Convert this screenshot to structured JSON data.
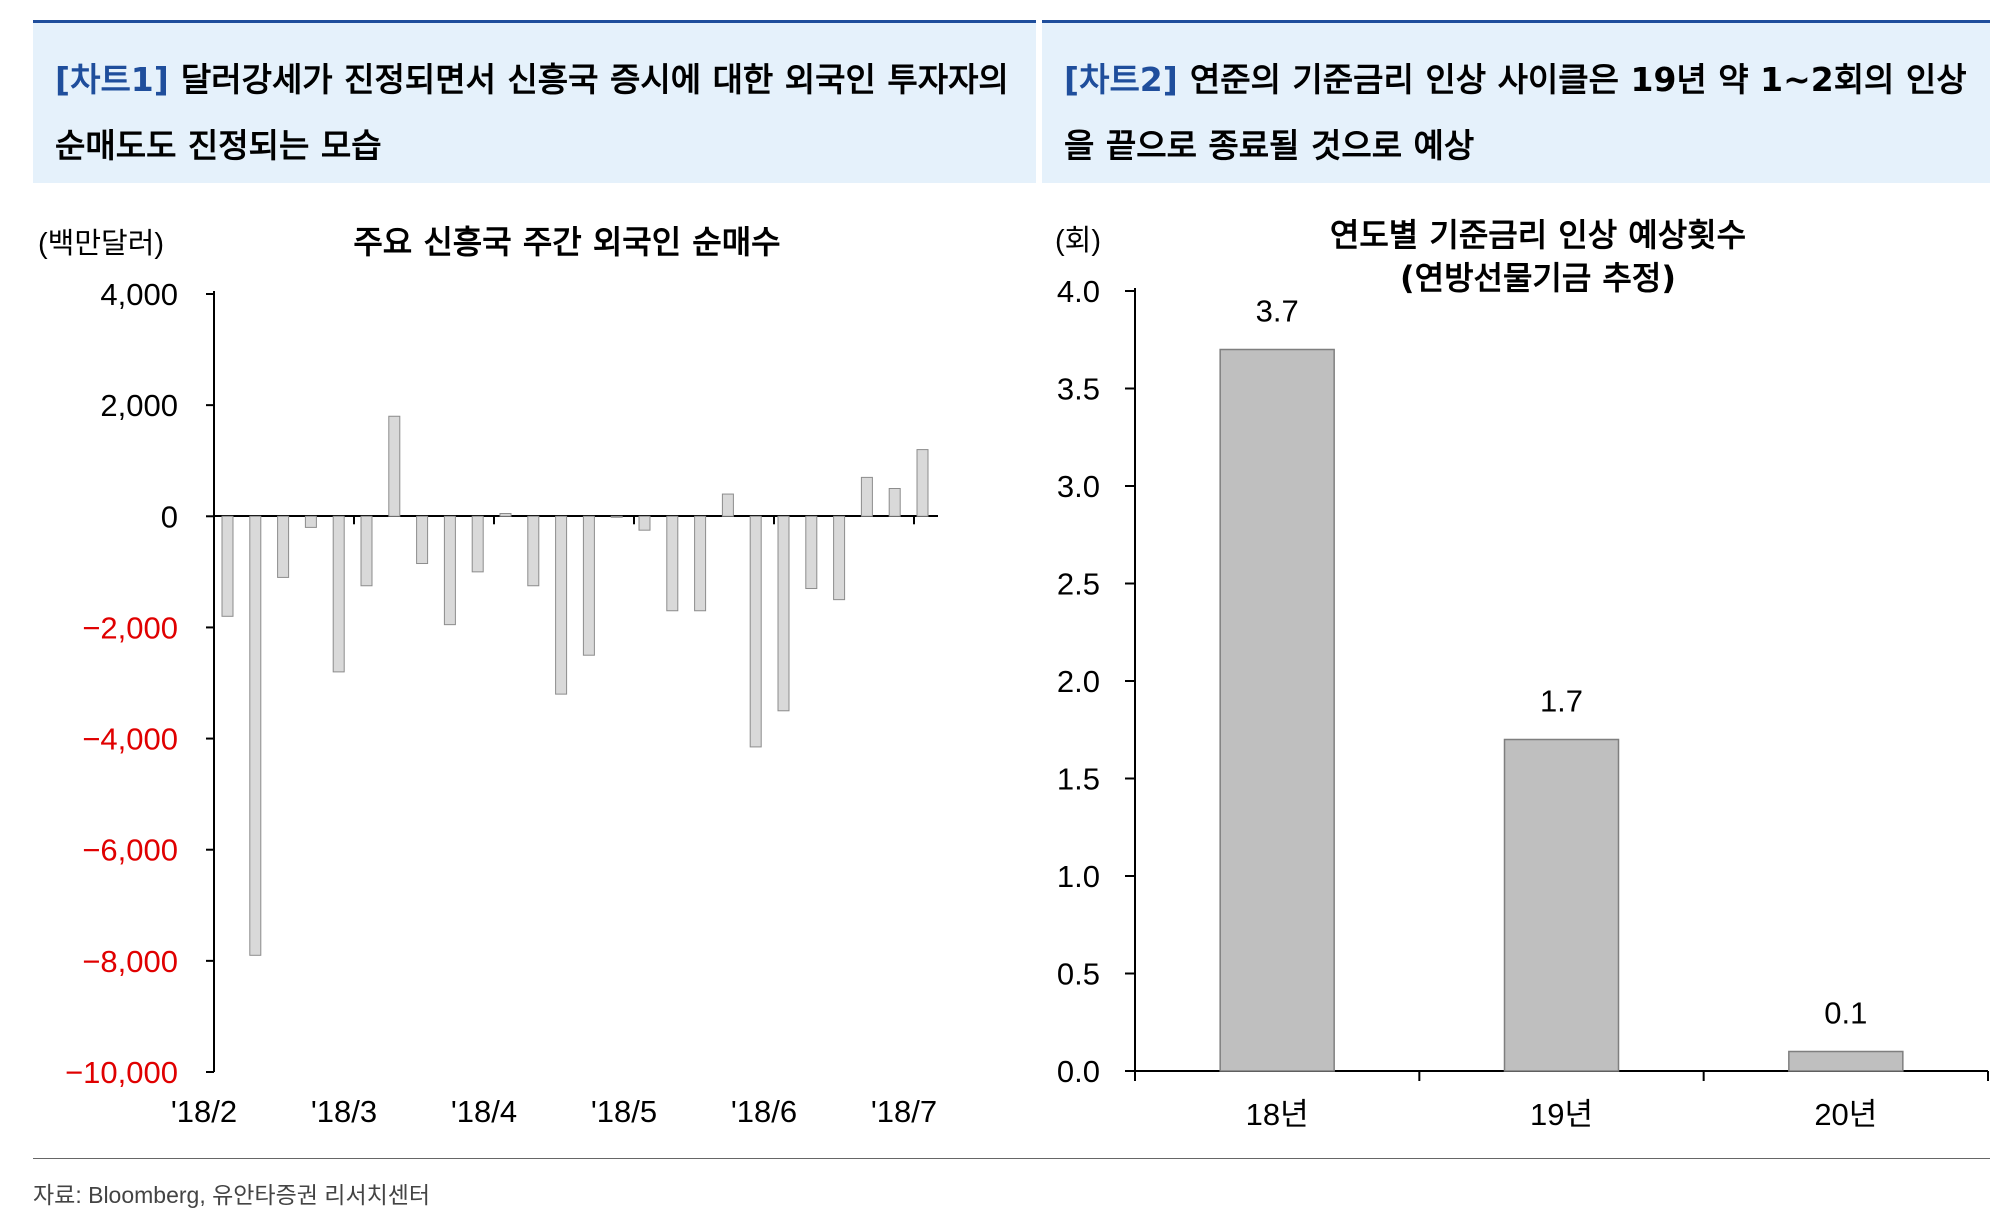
{
  "panels": [
    {
      "tag": "[차트1]",
      "heading": "달러강세가 진정되면서 신흥국 증시에 대한 외국인 투자자의 순매도도 진정되는 모습"
    },
    {
      "tag": "[차트2]",
      "heading": "연준의 기준금리 인상 사이클은 19년 약 1~2회의 인상을 끝으로 종료될 것으로 예상"
    }
  ],
  "source": "자료: Bloomberg, 유안타증권 리서치센터",
  "colors": {
    "accent": "#1f4e9c",
    "header_bg": "#e5f1fb",
    "bar1": "#d9d9d9",
    "bar2": "#bfbfbf",
    "negative_tick": "#e00000"
  },
  "chart_data": [
    {
      "type": "bar",
      "title": "주요 신흥국 주간 외국인 순매수",
      "unit": "(백만달러)",
      "ylim": [
        -10000,
        4000
      ],
      "y_ticks": [
        4000,
        2000,
        0,
        -2000,
        -4000,
        -6000,
        -8000,
        -10000
      ],
      "y_tick_labels": [
        "4,000",
        "2,000",
        "0",
        "−2,000",
        "−4,000",
        "−6,000",
        "−8,000",
        "−10,000"
      ],
      "x_tick_labels": [
        "'18/2",
        "'18/3",
        "'18/4",
        "'18/5",
        "'18/6",
        "'18/7"
      ],
      "values": [
        -1800,
        -7900,
        -1100,
        -200,
        -2800,
        -1250,
        1800,
        -850,
        -1950,
        -1000,
        50,
        -1250,
        -3200,
        -2500,
        0,
        -250,
        -1700,
        -1700,
        400,
        -4150,
        -3500,
        -1300,
        -1500,
        700,
        500,
        1200
      ],
      "grid": false,
      "legend": "none"
    },
    {
      "type": "bar",
      "title": "연도별 기준금리 인상 예상횟수",
      "subtitle": "(연방선물기금 추정)",
      "unit": "(회)",
      "categories": [
        "18년",
        "19년",
        "20년"
      ],
      "values": [
        3.7,
        1.7,
        0.1
      ],
      "data_labels": [
        "3.7",
        "1.7",
        "0.1"
      ],
      "ylim": [
        0,
        4
      ],
      "y_ticks": [
        4.0,
        3.5,
        3.0,
        2.5,
        2.0,
        1.5,
        1.0,
        0.5,
        0.0
      ],
      "y_tick_labels": [
        "4.0",
        "3.5",
        "3.0",
        "2.5",
        "2.0",
        "1.5",
        "1.0",
        "0.5",
        "0.0"
      ],
      "grid": false,
      "legend": "none"
    }
  ]
}
